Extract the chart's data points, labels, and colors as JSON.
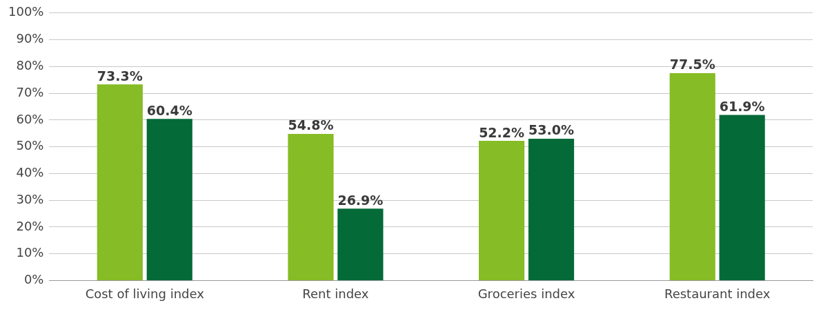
{
  "chart_data": {
    "type": "bar",
    "categories": [
      "Cost of living index",
      "Rent index",
      "Groceries index",
      "Restaurant index"
    ],
    "series": [
      {
        "color": "#86bc25",
        "values": [
          73.3,
          54.8,
          52.2,
          77.5
        ],
        "value_labels": [
          "73.3%",
          "54.8%",
          "52.2%",
          "77.5%"
        ]
      },
      {
        "color": "#046a38",
        "values": [
          60.4,
          26.9,
          53.0,
          61.9
        ],
        "value_labels": [
          "60.4%",
          "26.9%",
          "53.0%",
          "61.9%"
        ]
      }
    ],
    "ylim": [
      0,
      100
    ],
    "yticks": [
      {
        "value": 0,
        "label": "0%"
      },
      {
        "value": 10,
        "label": "10%"
      },
      {
        "value": 20,
        "label": "20%"
      },
      {
        "value": 30,
        "label": "30%"
      },
      {
        "value": 40,
        "label": "40%"
      },
      {
        "value": 50,
        "label": "50%"
      },
      {
        "value": 60,
        "label": "60%"
      },
      {
        "value": 70,
        "label": "70%"
      },
      {
        "value": 80,
        "label": "80%"
      },
      {
        "value": 90,
        "label": "90%"
      },
      {
        "value": 100,
        "label": "100%"
      }
    ],
    "grid": "y",
    "legend": false
  }
}
